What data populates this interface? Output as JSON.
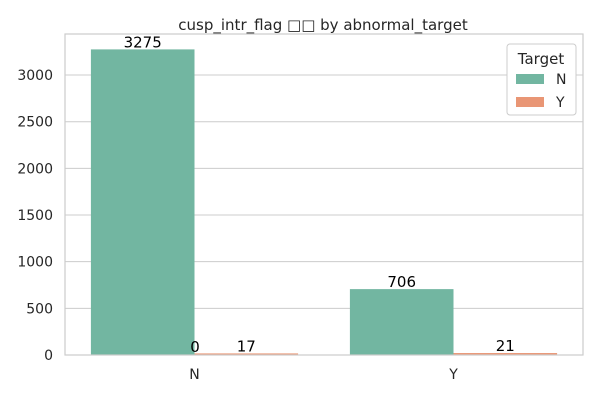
{
  "chart_data": {
    "type": "bar",
    "title": "cusp_intr_flag □□ by abnormal_target",
    "xlabel": "",
    "ylabel": "",
    "categories": [
      "N",
      "Y"
    ],
    "series": [
      {
        "name": "N",
        "color": "#72b6a1",
        "values": [
          3275,
          706
        ],
        "labels": [
          "3275",
          "706"
        ]
      },
      {
        "name": "Y",
        "color": "#e99675",
        "values": [
          17,
          21
        ],
        "labels": [
          "17",
          "21"
        ]
      }
    ],
    "extra_labels": [
      "0"
    ],
    "ylim": [
      0,
      3440
    ],
    "yticks": [
      0,
      500,
      1000,
      1500,
      2000,
      2500,
      3000
    ],
    "ytick_labels": [
      "0",
      "500",
      "1000",
      "1500",
      "2000",
      "2500",
      "3000"
    ],
    "legend": {
      "title": "Target",
      "position": "top-right"
    },
    "grid": "y"
  }
}
